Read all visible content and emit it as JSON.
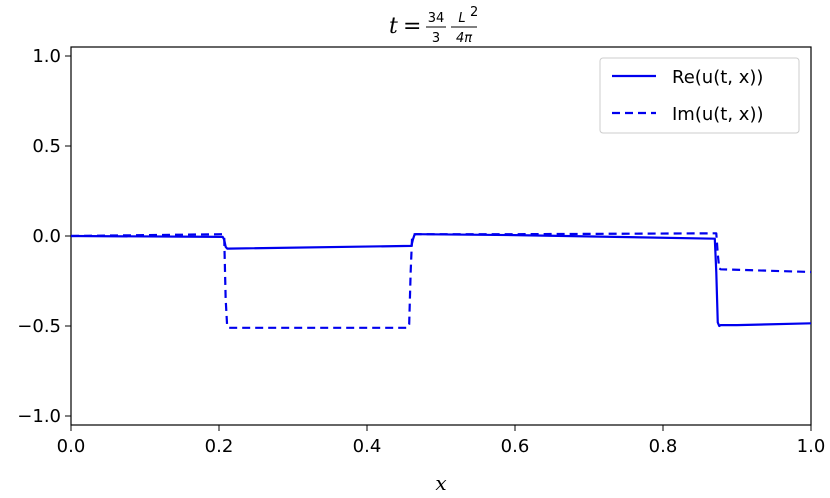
{
  "chart_data": {
    "type": "line",
    "title": {
      "lhs": "t",
      "eq": "=",
      "frac1_num": "34",
      "frac1_den": "3",
      "frac2_num": "L",
      "frac2_sup": "2",
      "frac2_den": "4π"
    },
    "xlabel": "x",
    "ylabel": "",
    "xlim": [
      0.0,
      1.0
    ],
    "ylim": [
      -1.05,
      1.05
    ],
    "xticks": [
      "0.0",
      "0.2",
      "0.4",
      "0.6",
      "0.8",
      "1.0"
    ],
    "xtick_values": [
      0.0,
      0.2,
      0.4,
      0.6,
      0.8,
      1.0
    ],
    "yticks": [
      "−1.0",
      "−0.5",
      "0.0",
      "0.5",
      "1.0"
    ],
    "ytick_values": [
      -1.0,
      -0.5,
      0.0,
      0.5,
      1.0
    ],
    "grid": false,
    "legend_position": "top-right",
    "series": [
      {
        "name": "Re(u(t, x))",
        "color": "#0000ee",
        "style": "solid",
        "x": [
          0.0,
          0.205,
          0.207,
          0.209,
          0.211,
          0.213,
          0.46,
          0.462,
          0.464,
          0.466,
          0.468,
          0.6,
          0.87,
          0.872,
          0.874,
          0.876,
          0.878,
          0.9,
          1.0
        ],
        "y": [
          0.0,
          -0.005,
          -0.02,
          -0.06,
          -0.07,
          -0.07,
          -0.055,
          -0.02,
          0.005,
          0.01,
          0.01,
          0.005,
          -0.015,
          -0.2,
          -0.48,
          -0.5,
          -0.495,
          -0.495,
          -0.485
        ]
      },
      {
        "name": "Im(u(t, x))",
        "color": "#0000ee",
        "style": "dashed",
        "x": [
          0.0,
          0.205,
          0.207,
          0.209,
          0.211,
          0.213,
          0.455,
          0.457,
          0.459,
          0.461,
          0.463,
          0.6,
          0.872,
          0.874,
          0.876,
          0.878,
          1.0
        ],
        "y": [
          0.0,
          0.01,
          0.0,
          -0.35,
          -0.5,
          -0.51,
          -0.51,
          -0.49,
          -0.2,
          0.0,
          0.01,
          0.01,
          0.015,
          -0.1,
          -0.18,
          -0.185,
          -0.2
        ]
      }
    ]
  }
}
